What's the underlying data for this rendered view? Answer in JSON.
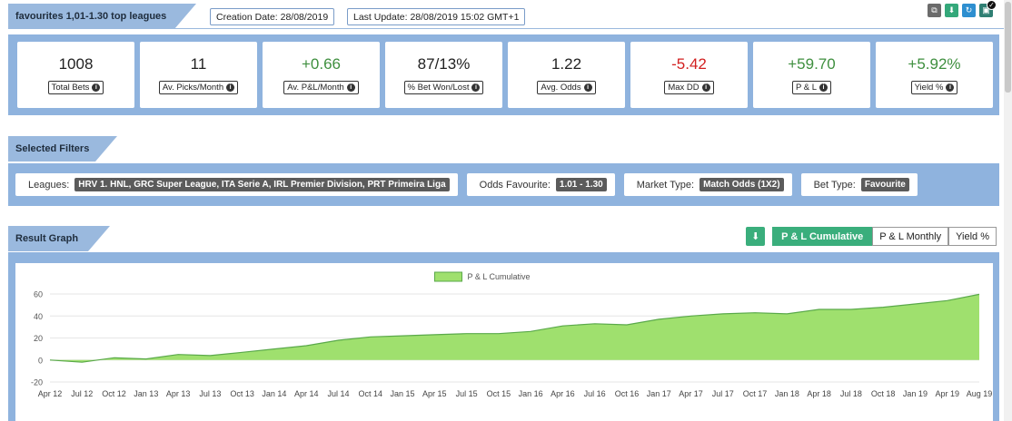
{
  "header": {
    "title": "favourites 1,01-1.30 top leagues",
    "creation_date": "Creation Date: 28/08/2019",
    "last_update": "Last Update: 28/08/2019 15:02 GMT+1"
  },
  "top_icons": [
    "copy-icon",
    "download-icon",
    "refresh-icon",
    "check-icon"
  ],
  "stats": [
    {
      "value": "1008",
      "label": "Total Bets",
      "color": "#222222"
    },
    {
      "value": "11",
      "label": "Av. Picks/Month",
      "color": "#222222"
    },
    {
      "value": "+0.66",
      "label": "Av. P&L/Month",
      "color": "#3f8f3f"
    },
    {
      "value": "87/13%",
      "label": "% Bet Won/Lost",
      "color": "#222222"
    },
    {
      "value": "1.22",
      "label": "Avg. Odds",
      "color": "#222222"
    },
    {
      "value": "-5.42",
      "label": "Max DD",
      "color": "#d21f1f"
    },
    {
      "value": "+59.70",
      "label": "P & L",
      "color": "#3f8f3f"
    },
    {
      "value": "+5.92%",
      "label": "Yield %",
      "color": "#3f8f3f"
    }
  ],
  "filters_section": {
    "title": "Selected Filters",
    "items": [
      {
        "label": "Leagues:",
        "tag": "HRV 1. HNL, GRC Super League, ITA Serie A, IRL Premier Division, PRT Primeira Liga"
      },
      {
        "label": "Odds Favourite:",
        "tag": "1.01 - 1.30"
      },
      {
        "label": "Market Type:",
        "tag": "Match Odds (1X2)"
      },
      {
        "label": "Bet Type:",
        "tag": "Favourite"
      }
    ]
  },
  "graph_section": {
    "title": "Result Graph",
    "tabs": [
      {
        "label": "P & L Cumulative",
        "active": true
      },
      {
        "label": "P & L Monthly",
        "active": false
      },
      {
        "label": "Yield %",
        "active": false
      }
    ]
  },
  "chart_data": {
    "type": "area",
    "legend": [
      "P & L Cumulative"
    ],
    "legend_position": "top-center",
    "fill_color": "#9fe06e",
    "line_color": "#5aa94a",
    "grid": true,
    "ylim": [
      -20,
      65
    ],
    "yticks": [
      60,
      40,
      20,
      0,
      -20
    ],
    "x_ticks": [
      "Apr 12",
      "Jul 12",
      "Oct 12",
      "Jan 13",
      "Apr 13",
      "Jul 13",
      "Oct 13",
      "Jan 14",
      "Apr 14",
      "Jul 14",
      "Oct 14",
      "Jan 15",
      "Apr 15",
      "Jul 15",
      "Oct 15",
      "Jan 16",
      "Apr 16",
      "Jul 16",
      "Oct 16",
      "Jan 17",
      "Apr 17",
      "Jul 17",
      "Oct 17",
      "Jan 18",
      "Apr 18",
      "Jul 18",
      "Oct 18",
      "Jan 19",
      "Apr 19",
      "Aug 19"
    ],
    "series": [
      {
        "name": "P & L Cumulative",
        "x": [
          0,
          1,
          2,
          3,
          4,
          5,
          6,
          7,
          8,
          9,
          10,
          11,
          12,
          13,
          14,
          15,
          16,
          17,
          18,
          19,
          20,
          21,
          22,
          23,
          24,
          25,
          26,
          27,
          28,
          29
        ],
        "values": [
          0,
          -2,
          2,
          1,
          5,
          4,
          7,
          10,
          13,
          18,
          21,
          22,
          23,
          24,
          24,
          26,
          31,
          33,
          32,
          37,
          40,
          42,
          43,
          42,
          46,
          46,
          48,
          51,
          54,
          59.7
        ]
      }
    ]
  }
}
